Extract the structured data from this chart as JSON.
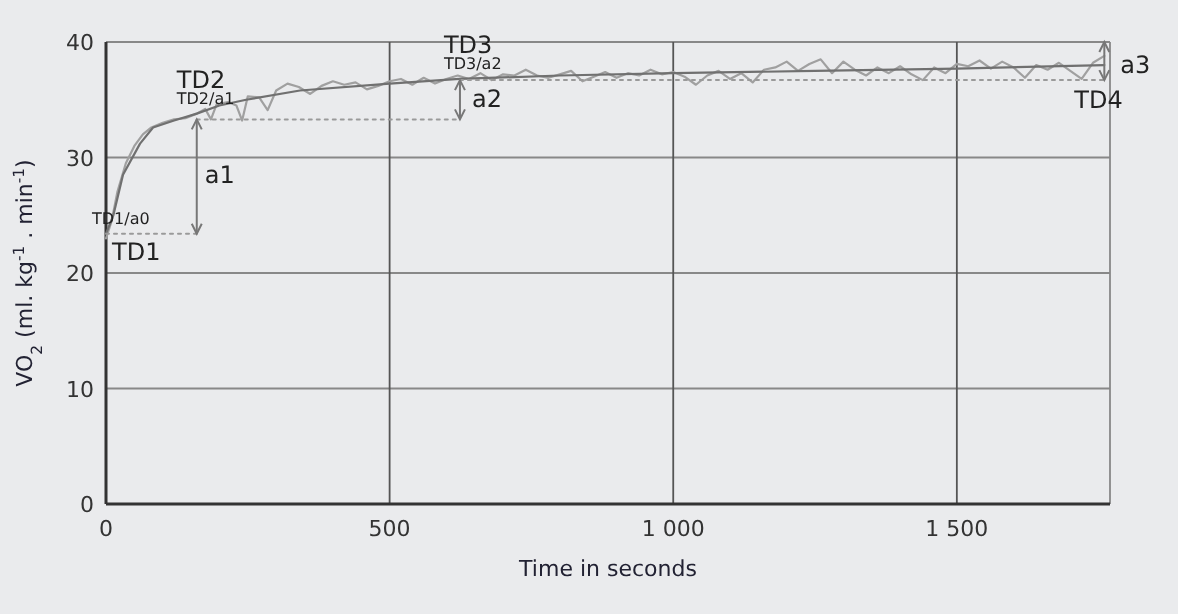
{
  "chart_data": {
    "type": "line",
    "xlabel": "Time in seconds",
    "ylabel": "VO$_{2}$ (ml. kg$^{-1}$ . min$^{-1}$)",
    "xlim": [
      0,
      1770
    ],
    "ylim": [
      0,
      40
    ],
    "xticks": [
      0,
      500,
      {
        "value": 1000,
        "label": "1 000"
      },
      {
        "value": 1500,
        "label": "1 500"
      }
    ],
    "yticks": [
      0,
      10,
      20,
      30,
      40
    ],
    "grid": true,
    "marker": "none",
    "series": [
      {
        "color": "#a0a0a0",
        "line_style": "solid",
        "x": [
          0,
          10,
          20,
          35,
          50,
          65,
          80,
          100,
          120,
          140,
          160,
          175,
          185,
          195,
          215,
          230,
          240,
          250,
          270,
          285,
          300,
          320,
          340,
          360,
          380,
          400,
          420,
          440,
          460,
          480,
          500,
          520,
          540,
          560,
          580,
          600,
          620,
          640,
          660,
          680,
          700,
          720,
          740,
          760,
          780,
          800,
          820,
          840,
          860,
          880,
          900,
          920,
          940,
          960,
          980,
          1000,
          1020,
          1040,
          1060,
          1080,
          1100,
          1120,
          1140,
          1160,
          1180,
          1200,
          1220,
          1240,
          1260,
          1280,
          1300,
          1320,
          1340,
          1360,
          1380,
          1400,
          1420,
          1440,
          1460,
          1480,
          1500,
          1520,
          1540,
          1560,
          1580,
          1600,
          1620,
          1640,
          1660,
          1680,
          1700,
          1720,
          1740,
          1760
        ],
        "values": [
          23.0,
          24.5,
          27,
          29.5,
          31,
          32,
          32.6,
          33,
          33.3,
          33.4,
          33.8,
          34.2,
          33.3,
          34.6,
          34.8,
          34.5,
          33.2,
          35.3,
          35.2,
          34.1,
          35.8,
          36.4,
          36.1,
          35.5,
          36.2,
          36.6,
          36.3,
          36.5,
          35.9,
          36.2,
          36.6,
          36.8,
          36.3,
          36.9,
          36.4,
          36.8,
          37.1,
          36.8,
          37.3,
          36.7,
          37.2,
          37.1,
          37.6,
          37.1,
          36.9,
          37.2,
          37.5,
          36.6,
          37.0,
          37.4,
          36.9,
          37.3,
          37.1,
          37.6,
          37.2,
          37.4,
          37.0,
          36.3,
          37.1,
          37.5,
          36.8,
          37.3,
          36.5,
          37.6,
          37.8,
          38.3,
          37.5,
          38.1,
          38.5,
          37.3,
          38.3,
          37.6,
          37.1,
          37.8,
          37.3,
          37.9,
          37.2,
          36.7,
          37.8,
          37.3,
          38.1,
          37.9,
          38.4,
          37.7,
          38.3,
          37.8,
          36.9,
          38.0,
          37.6,
          38.2,
          37.5,
          36.8,
          38.2,
          38.8
        ]
      },
      {
        "color": "#707070",
        "line_style": "solid",
        "x": [
          0,
          13,
          30,
          60,
          83,
          120,
          160,
          200,
          247,
          342,
          500,
          623,
          800,
          1000,
          1250,
          1500,
          1760
        ],
        "values": [
          23.4,
          25,
          28.5,
          31.2,
          32.6,
          33.2,
          33.8,
          34.5,
          35,
          35.8,
          36.4,
          36.8,
          37.1,
          37.3,
          37.5,
          37.7,
          38.0
        ]
      },
      {
        "color": "#9a9a9a",
        "line_style": "dotted",
        "x": [
          0,
          160
        ],
        "values": [
          23.4,
          23.4
        ]
      },
      {
        "color": "#9a9a9a",
        "line_style": "dotted",
        "x": [
          160,
          624
        ],
        "values": [
          33.3,
          33.3
        ]
      },
      {
        "color": "#9a9a9a",
        "line_style": "dotted",
        "x": [
          624,
          1760
        ],
        "values": [
          36.7,
          36.7
        ]
      }
    ],
    "annotations": [
      {
        "text": "TD1/a0",
        "x": 0,
        "y": 23.4
      },
      {
        "text": "TD1",
        "x": 0,
        "y": 23.4
      },
      {
        "text": "TD2/a1",
        "x": 160,
        "y": 33.8
      },
      {
        "text": "TD2",
        "x": 160,
        "y": 33.8
      },
      {
        "text": "TD3/a2",
        "x": 624,
        "y": 36.8
      },
      {
        "text": "TD3",
        "x": 624,
        "y": 36.8
      },
      {
        "text": "TD4",
        "x": 1760,
        "y": 36.7
      },
      {
        "text": "a1",
        "x": 160,
        "y": 33.3
      },
      {
        "text": "a2",
        "x": 624,
        "y": 36.8
      },
      {
        "text": "a3",
        "x": 1760,
        "y": 38.0
      }
    ]
  }
}
